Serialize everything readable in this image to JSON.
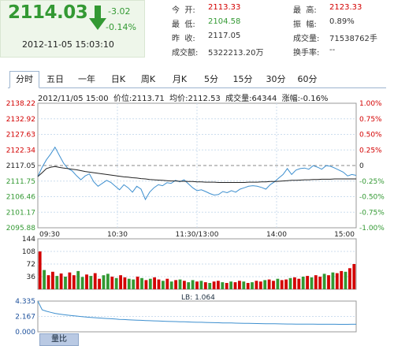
{
  "header": {
    "price": "2114.03",
    "change": "-3.02",
    "change_pct": "-0.14%",
    "timestamp": "2012-11-05 15:03:10",
    "fields": [
      {
        "label": "今  开:",
        "value": "2113.33",
        "color": "red"
      },
      {
        "label": "最  低:",
        "value": "2104.58",
        "color": "grn"
      },
      {
        "label": "昨  收:",
        "value": "2117.05",
        "color": "blk"
      },
      {
        "label": "成交额:",
        "value": "5322213.20万",
        "color": "blk"
      }
    ],
    "fields2": [
      {
        "label": "最  高:",
        "value": "2123.33",
        "color": "red"
      },
      {
        "label": "振  幅:",
        "value": "0.89%",
        "color": "blk"
      },
      {
        "label": "成交量:",
        "value": "71538762手",
        "color": "blk"
      },
      {
        "label": "换手率:",
        "value": "--",
        "color": "blk"
      }
    ]
  },
  "tabs": [
    "分时",
    "五日",
    "一年",
    "日K",
    "周K",
    "月K",
    "5分",
    "15分",
    "30分",
    "60分"
  ],
  "active_tab": 0,
  "info_bar": "2012/11/05 15:00  价位:2113.71  均价:2112.53  成交量:64344  涨幅:-0.16%",
  "bottom_tab": "量比",
  "lb_label": "LB: 1.064",
  "colors": {
    "up": "#d30000",
    "down": "#339933",
    "price_line": "#3d8fcf",
    "avg_line": "#222222",
    "grid": "#ccddee"
  },
  "chart_data": [
    {
      "type": "line",
      "title": "",
      "y_left_ticks": [
        "2138.22",
        "2132.92",
        "2127.63",
        "2122.34",
        "2117.05",
        "2111.75",
        "2106.46",
        "2101.17",
        "2095.88"
      ],
      "y_right_ticks": [
        "1.00%",
        "0.75%",
        "0.50%",
        "0.25%",
        "0",
        "-0.25%",
        "-0.50%",
        "-0.75%",
        "-1.00%"
      ],
      "x_ticks": [
        "09:30",
        "10:30",
        "11:30/13:00",
        "14:00",
        "15:00"
      ],
      "ylim": [
        2095.88,
        2138.22
      ],
      "prev_close": 2117.05,
      "series": [
        {
          "name": "价位",
          "values": [
            2113.3,
            2116.5,
            2119.0,
            2121.0,
            2123.3,
            2120.5,
            2117.8,
            2116.0,
            2115.2,
            2113.6,
            2112.2,
            2113.5,
            2114.2,
            2111.5,
            2110.0,
            2111.0,
            2112.0,
            2111.3,
            2110.0,
            2108.8,
            2110.5,
            2109.5,
            2108.0,
            2110.0,
            2109.0,
            2105.5,
            2108.0,
            2109.5,
            2110.5,
            2110.2,
            2111.2,
            2111.0,
            2112.0,
            2111.5,
            2112.2,
            2110.8,
            2109.5,
            2108.5,
            2108.8,
            2108.2,
            2107.5,
            2107.0,
            2107.2,
            2108.2,
            2107.8,
            2108.5,
            2108.0,
            2109.0,
            2109.5,
            2110.0,
            2110.2,
            2110.0,
            2109.6,
            2109.0,
            2110.5,
            2111.5,
            2112.8,
            2114.0,
            2116.0,
            2114.0,
            2115.5,
            2116.0,
            2116.2,
            2115.8,
            2117.0,
            2116.5,
            2115.8,
            2117.0,
            2116.8,
            2116.2,
            2115.5,
            2114.8,
            2113.5,
            2114.0,
            2113.7
          ]
        },
        {
          "name": "均价",
          "values": [
            2113.3,
            2114.6,
            2116.0,
            2116.5,
            2116.7,
            2116.4,
            2116.2,
            2116.0,
            2115.8,
            2115.6,
            2115.3,
            2115.0,
            2114.8,
            2114.6,
            2114.4,
            2114.2,
            2114.0,
            2113.8,
            2113.6,
            2113.4,
            2113.2,
            2113.1,
            2112.9,
            2112.8,
            2112.6,
            2112.5,
            2112.3,
            2112.2,
            2112.1,
            2112.0,
            2111.9,
            2111.8,
            2111.8,
            2111.7,
            2111.7,
            2111.6,
            2111.6,
            2111.5,
            2111.5,
            2111.4,
            2111.4,
            2111.4,
            2111.3,
            2111.3,
            2111.3,
            2111.3,
            2111.3,
            2111.3,
            2111.3,
            2111.4,
            2111.4,
            2111.4,
            2111.5,
            2111.5,
            2111.6,
            2111.6,
            2111.7,
            2111.8,
            2111.9,
            2112.0,
            2112.0,
            2112.1,
            2112.2,
            2112.2,
            2112.3,
            2112.3,
            2112.4,
            2112.4,
            2112.4,
            2112.5,
            2112.5,
            2112.5,
            2112.5,
            2112.5,
            2112.5
          ]
        }
      ]
    },
    {
      "type": "bar",
      "title": "",
      "y_ticks": [
        "144",
        "108",
        "72",
        "36"
      ],
      "ylim": [
        0,
        144
      ],
      "series": [
        {
          "name": "成交量",
          "values": [
            108,
            55,
            40,
            50,
            38,
            45,
            36,
            48,
            40,
            52,
            35,
            42,
            38,
            46,
            30,
            40,
            44,
            36,
            32,
            40,
            34,
            30,
            28,
            36,
            32,
            26,
            30,
            34,
            28,
            24,
            30,
            22,
            26,
            28,
            24,
            20,
            26,
            22,
            24,
            20,
            18,
            22,
            24,
            20,
            18,
            22,
            20,
            24,
            22,
            18,
            20,
            24,
            22,
            26,
            28,
            24,
            30,
            26,
            28,
            32,
            34,
            30,
            36,
            38,
            34,
            40,
            36,
            44,
            40,
            48,
            46,
            52,
            50,
            60,
            72
          ]
        }
      ],
      "series_up": [
        1,
        0,
        1,
        1,
        0,
        1,
        0,
        1,
        1,
        0,
        0,
        1,
        0,
        1,
        1,
        0,
        0,
        1,
        0,
        1,
        1,
        0,
        0,
        1,
        0,
        1,
        0,
        1,
        1,
        0,
        1,
        0,
        1,
        0,
        1,
        0,
        0,
        1,
        0,
        1,
        0,
        1,
        1,
        0,
        1,
        0,
        1,
        1,
        0,
        1,
        0,
        1,
        1,
        0,
        1,
        1,
        0,
        1,
        1,
        0,
        1,
        1,
        0,
        1,
        0,
        1,
        1,
        0,
        1,
        0,
        1,
        1,
        0,
        1,
        1
      ]
    },
    {
      "type": "line",
      "title": "",
      "y_ticks": [
        "4.335",
        "2.167",
        "0.000"
      ],
      "ylim": [
        0,
        4.335
      ],
      "series": [
        {
          "name": "LB",
          "values": [
            4.335,
            3.1,
            2.9,
            2.75,
            2.6,
            2.5,
            2.42,
            2.35,
            2.28,
            2.22,
            2.16,
            2.1,
            2.05,
            2.0,
            1.96,
            1.92,
            1.88,
            1.84,
            1.8,
            1.76,
            1.73,
            1.7,
            1.67,
            1.64,
            1.62,
            1.59,
            1.57,
            1.55,
            1.53,
            1.5,
            1.48,
            1.46,
            1.44,
            1.42,
            1.41,
            1.39,
            1.37,
            1.35,
            1.34,
            1.32,
            1.31,
            1.29,
            1.28,
            1.26,
            1.25,
            1.24,
            1.22,
            1.21,
            1.2,
            1.19,
            1.18,
            1.17,
            1.16,
            1.15,
            1.14,
            1.13,
            1.12,
            1.11,
            1.1,
            1.1,
            1.09,
            1.09,
            1.08,
            1.08,
            1.08,
            1.07,
            1.07,
            1.07,
            1.07,
            1.07,
            1.06,
            1.06,
            1.06,
            1.064,
            1.064
          ]
        }
      ]
    }
  ]
}
